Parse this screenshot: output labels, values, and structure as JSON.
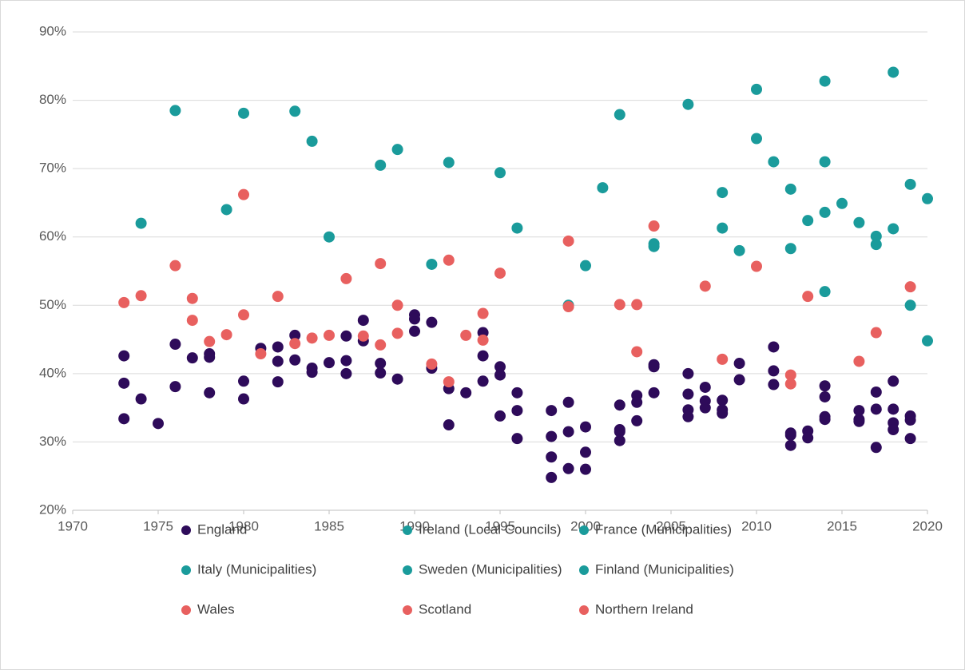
{
  "chart_data": {
    "type": "scatter",
    "xlim": [
      1970,
      2020
    ],
    "xticks": [
      1970,
      1975,
      1980,
      1985,
      1990,
      1995,
      2000,
      2005,
      2010,
      2015,
      2020
    ],
    "ylim": [
      20,
      90
    ],
    "yticks": [
      {
        "value": 20,
        "label": "20%"
      },
      {
        "value": 30,
        "label": "30%"
      },
      {
        "value": 40,
        "label": "40%"
      },
      {
        "value": 50,
        "label": "50%"
      },
      {
        "value": 60,
        "label": "60%"
      },
      {
        "value": 70,
        "label": "70%"
      },
      {
        "value": 80,
        "label": "80%"
      },
      {
        "value": 90,
        "label": "90%"
      }
    ],
    "grid": true,
    "series": [
      {
        "name": "England",
        "color": "#2e0b5a",
        "x": [
          1973,
          1973,
          1973,
          1974,
          1975,
          1976,
          1976,
          1977,
          1978,
          1978,
          1978,
          1980,
          1980,
          1981,
          1982,
          1982,
          1982,
          1983,
          1983,
          1984,
          1984,
          1985,
          1986,
          1986,
          1986,
          1987,
          1987,
          1988,
          1988,
          1989,
          1990,
          1990,
          1990,
          1991,
          1991,
          1992,
          1992,
          1993,
          1994,
          1994,
          1994,
          1995,
          1995,
          1995,
          1996,
          1996,
          1996,
          1998,
          1998,
          1998,
          1998,
          1999,
          1999,
          1999,
          2000,
          2000,
          2000,
          2002,
          2002,
          2002,
          2002,
          2003,
          2003,
          2003,
          2004,
          2004,
          2004,
          2006,
          2006,
          2006,
          2006,
          2007,
          2007,
          2007,
          2008,
          2008,
          2008,
          2009,
          2009,
          2011,
          2011,
          2011,
          2012,
          2012,
          2012,
          2013,
          2013,
          2014,
          2014,
          2014,
          2014,
          2016,
          2016,
          2016,
          2017,
          2017,
          2017,
          2018,
          2018,
          2018,
          2018,
          2019,
          2019,
          2019
        ],
        "values": [
          42.6,
          38.6,
          33.4,
          36.3,
          32.7,
          44.3,
          38.1,
          42.3,
          42.9,
          42.4,
          37.2,
          38.9,
          36.3,
          43.7,
          43.9,
          41.8,
          38.8,
          45.6,
          42.0,
          40.8,
          40.2,
          41.6,
          45.5,
          41.9,
          40.0,
          47.8,
          44.8,
          41.5,
          40.1,
          39.2,
          48.6,
          48.0,
          46.2,
          47.5,
          40.8,
          37.8,
          32.5,
          37.2,
          46.0,
          42.6,
          38.9,
          41.0,
          39.8,
          33.8,
          37.2,
          34.6,
          30.5,
          34.6,
          30.8,
          27.8,
          24.8,
          35.8,
          31.5,
          26.1,
          32.2,
          28.5,
          26.0,
          35.4,
          31.8,
          31.5,
          30.2,
          36.8,
          35.8,
          33.1,
          41.3,
          41.0,
          37.2,
          40.0,
          37.0,
          34.7,
          33.7,
          38.0,
          36.0,
          35.0,
          36.1,
          34.7,
          34.2,
          41.5,
          39.1,
          43.9,
          40.4,
          38.4,
          31.3,
          31.0,
          29.5,
          31.6,
          30.6,
          38.2,
          36.6,
          33.7,
          33.3,
          34.6,
          33.3,
          33.0,
          37.3,
          34.8,
          29.2,
          38.9,
          34.8,
          32.8,
          31.8,
          33.8,
          33.2,
          30.5
        ]
      },
      {
        "name": "Ireland (Local Councils)",
        "color": "#1a9b9b",
        "x": [
          1974,
          1979,
          1985,
          1991,
          1999,
          2004,
          2009,
          2014,
          2019
        ],
        "values": [
          62.0,
          64.0,
          60.0,
          56.0,
          50.0,
          59.0,
          58.0,
          52.0,
          50.0
        ]
      },
      {
        "name": "France (Municipalities)",
        "color": "#1a9b9b",
        "x": [
          1976,
          1983,
          1989,
          1995,
          2001,
          2008,
          2014,
          2020
        ],
        "values": [
          78.5,
          78.4,
          72.8,
          69.4,
          67.2,
          66.5,
          63.6,
          65.6
        ]
      },
      {
        "name": "Italy (Municipalities)",
        "color": "#1a9b9b",
        "x": [
          1980,
          1984,
          1988,
          2010,
          2011,
          2012,
          2013,
          2014,
          2015,
          2016,
          2017,
          2018,
          2019,
          2020
        ],
        "values": [
          78.1,
          74.0,
          70.5,
          74.4,
          71.0,
          67.0,
          62.4,
          71.0,
          64.9,
          62.1,
          60.1,
          61.2,
          67.7,
          44.8
        ]
      },
      {
        "name": "Sweden (Municipalities)",
        "color": "#1a9b9b",
        "x": [
          2002,
          2006,
          2010,
          2014,
          2018
        ],
        "values": [
          77.9,
          79.4,
          81.6,
          82.8,
          84.1
        ]
      },
      {
        "name": "Finland (Municipalities)",
        "color": "#1a9b9b",
        "x": [
          1992,
          1996,
          2000,
          2004,
          2008,
          2012,
          2017
        ],
        "values": [
          70.9,
          61.3,
          55.8,
          58.6,
          61.3,
          58.3,
          58.9
        ]
      },
      {
        "name": "Wales",
        "color": "#e8605f",
        "x": [
          1973,
          1976,
          1977,
          1981,
          1985,
          1989,
          1991,
          1995,
          1999,
          2004,
          2008,
          2012
        ],
        "values": [
          50.4,
          55.8,
          51.0,
          42.9,
          45.6,
          50.0,
          41.4,
          54.7,
          49.8,
          61.6,
          42.1,
          39.8
        ]
      },
      {
        "name": "Scotland",
        "color": "#e8605f",
        "x": [
          1974,
          1977,
          1978,
          1980,
          1982,
          1984,
          1986,
          1988,
          1992,
          1994,
          1999,
          2003,
          2007,
          2012,
          2017
        ],
        "values": [
          51.4,
          47.8,
          44.7,
          48.6,
          51.3,
          45.2,
          53.9,
          44.2,
          38.8,
          44.9,
          59.4,
          50.1,
          52.8,
          38.5,
          46.0
        ]
      },
      {
        "name": "Northern Ireland",
        "color": "#e8605f",
        "x": [
          1979,
          1980,
          1983,
          1987,
          1988,
          1989,
          1992,
          1993,
          1994,
          2002,
          2003,
          2010,
          2013,
          2016,
          2019
        ],
        "values": [
          45.7,
          66.2,
          44.4,
          45.5,
          56.1,
          45.9,
          56.6,
          45.6,
          48.8,
          50.1,
          43.2,
          55.7,
          51.3,
          41.8,
          52.7
        ]
      }
    ]
  }
}
